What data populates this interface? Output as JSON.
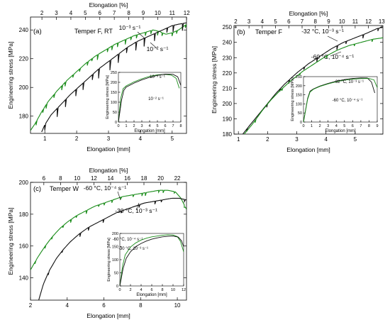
{
  "chart_data": [
    {
      "type": "line",
      "panel_label": "(a)",
      "annotation": "Temper F,  RT",
      "xlabel": "Elongation [mm]",
      "x2label": "Elongation [%]",
      "ylabel": "Engineering stress [MPa]",
      "xlim": [
        0.55,
        5.45
      ],
      "ylim": [
        168,
        249
      ],
      "x_ticks": [
        "1",
        "2",
        "3",
        "4",
        "5"
      ],
      "x_tick_values": [
        1,
        2,
        3,
        4,
        5
      ],
      "x2_ticks": [
        "2",
        "3",
        "4",
        "5",
        "6",
        "7",
        "8",
        "9",
        "10",
        "11",
        "12"
      ],
      "x2_tick_values": [
        2,
        3,
        4,
        5,
        6,
        7,
        8,
        9,
        10,
        11,
        12
      ],
      "x2_per_x": 2.2,
      "y_ticks": [
        "180",
        "200",
        "220",
        "240"
      ],
      "y_tick_values": [
        180,
        200,
        220,
        240
      ],
      "series": [
        {
          "label": "10⁻³ s⁻¹",
          "color": "#1a8c1a",
          "x": [
            0.55,
            0.7,
            0.9,
            1.1,
            1.4,
            1.7,
            2.0,
            2.3,
            2.6,
            2.9,
            3.2,
            3.5,
            3.8,
            4.1,
            4.4,
            4.6,
            4.8,
            5.0,
            5.2,
            5.45
          ],
          "y": [
            170,
            175,
            183,
            190,
            198,
            205,
            211,
            217,
            222,
            226,
            230,
            233,
            236,
            238,
            240,
            239,
            237,
            238,
            240,
            244
          ],
          "serrations": 24,
          "serration_drop": 2.5
        },
        {
          "label": "10⁻² s⁻¹",
          "color": "#111111",
          "x": [
            0.9,
            1.0,
            1.2,
            1.5,
            1.8,
            2.1,
            2.4,
            2.7,
            3.0,
            3.3,
            3.6,
            3.9,
            4.2,
            4.5,
            4.8,
            5.0,
            5.2,
            5.45
          ],
          "y": [
            169,
            174,
            181,
            188,
            195,
            201,
            207,
            213,
            218,
            223,
            228,
            232,
            235,
            238,
            241,
            243,
            244,
            245
          ],
          "serrations": 16,
          "serration_drop": 5
        }
      ],
      "inset": {
        "xlabel": "Elongation [mm]",
        "ylabel": "Engineering stress [MPa]",
        "xlim": [
          0,
          8
        ],
        "ylim": [
          0,
          250
        ],
        "x_ticks": [
          "0",
          "1",
          "2",
          "3",
          "4",
          "5",
          "6",
          "7",
          "8"
        ],
        "x_tick_values": [
          0,
          1,
          2,
          3,
          4,
          5,
          6,
          7,
          8
        ],
        "y_ticks": [
          "0",
          "50",
          "100",
          "150",
          "200",
          "250"
        ],
        "y_tick_values": [
          0,
          50,
          100,
          150,
          200,
          250
        ],
        "labels": [
          "10⁻³ s⁻¹",
          "10⁻² s⁻¹"
        ],
        "series": [
          {
            "color": "#1a8c1a",
            "x": [
              0,
              0.3,
              0.6,
              1.0,
              2.0,
              3.0,
              4.0,
              5.0,
              6.0,
              6.8,
              7.4,
              7.8
            ],
            "y": [
              0,
              120,
              168,
              182,
              202,
              218,
              230,
              238,
              240,
              236,
              220,
              170
            ]
          },
          {
            "color": "#111111",
            "x": [
              0,
              0.4,
              0.7,
              1.0,
              2.0,
              3.0,
              4.0,
              5.0,
              6.0,
              7.0,
              7.6,
              8.0
            ],
            "y": [
              0,
              110,
              160,
              176,
              196,
              212,
              225,
              235,
              241,
              240,
              228,
              185
            ]
          }
        ]
      }
    },
    {
      "type": "line",
      "panel_label": "(b)",
      "annotation": "Temper F",
      "xlabel": "Elongation [mm]",
      "x2label": "Elongation [%]",
      "ylabel": "Engineering stress [MPa]",
      "xlim": [
        0.85,
        5.95
      ],
      "ylim": [
        180,
        251
      ],
      "x_ticks": [
        "1",
        "2",
        "3",
        "4",
        "5"
      ],
      "x_tick_values": [
        1,
        2,
        3,
        4,
        5
      ],
      "x2_ticks": [
        "2",
        "3",
        "4",
        "5",
        "6",
        "7",
        "8",
        "9",
        "10",
        "11",
        "12",
        "13"
      ],
      "x2_tick_values": [
        2,
        3,
        4,
        5,
        6,
        7,
        8,
        9,
        10,
        11,
        12,
        13
      ],
      "x2_per_x": 2.2,
      "y_ticks": [
        "180",
        "190",
        "200",
        "210",
        "220",
        "230",
        "240",
        "250"
      ],
      "y_tick_values": [
        180,
        190,
        200,
        210,
        220,
        230,
        240,
        250
      ],
      "series": [
        {
          "label": "-32 °C, 10⁻³ s⁻¹",
          "color": "#111111",
          "x": [
            1.15,
            1.4,
            1.7,
            2.0,
            2.3,
            2.6,
            3.0,
            3.4,
            3.8,
            4.2,
            4.6,
            5.0,
            5.4,
            5.75,
            5.95
          ],
          "y": [
            180,
            186,
            193,
            200,
            207,
            213,
            220,
            226,
            231,
            236,
            240,
            243,
            246,
            249,
            250
          ],
          "serrations": 10,
          "serration_drop": 2
        },
        {
          "label": "-60 °C, 10⁻⁴ s⁻¹",
          "color": "#1a8c1a",
          "x": [
            1.2,
            1.5,
            1.8,
            2.1,
            2.4,
            2.8,
            3.2,
            3.6,
            4.0,
            4.4,
            4.8,
            5.2,
            5.6,
            5.95
          ],
          "y": [
            180,
            187,
            195,
            202,
            208,
            215,
            221,
            226,
            231,
            235,
            238,
            240,
            242,
            243
          ],
          "serrations": 6,
          "serration_drop": 1.5
        }
      ],
      "inset": {
        "xlabel": "Elongation [mm]",
        "ylabel": "Engineering stress [MPa]",
        "xlim": [
          0,
          9
        ],
        "ylim": [
          0,
          250
        ],
        "x_ticks": [
          "0",
          "1",
          "2",
          "3",
          "4",
          "5",
          "6",
          "7",
          "8",
          "9"
        ],
        "x_tick_values": [
          0,
          1,
          2,
          3,
          4,
          5,
          6,
          7,
          8,
          9
        ],
        "y_ticks": [
          "0",
          "50",
          "100",
          "150",
          "200",
          "250"
        ],
        "y_tick_values": [
          0,
          50,
          100,
          150,
          200,
          250
        ],
        "labels": [
          "-32 °C, 10⁻³ s⁻¹",
          "-60 °C, 10⁻⁴ s⁻¹"
        ],
        "series": [
          {
            "color": "#111111",
            "x": [
              0,
              0.5,
              0.8,
              1.2,
              2.0,
              3.0,
              4.0,
              5.0,
              6.0,
              7.0,
              7.8,
              8.3,
              8.7
            ],
            "y": [
              0,
              130,
              170,
              182,
              198,
              213,
              225,
              234,
              240,
              243,
              242,
              220,
              160
            ]
          },
          {
            "color": "#1a8c1a",
            "x": [
              0,
              0.5,
              0.8,
              1.2,
              2.0,
              3.0,
              4.0,
              5.0,
              6.0,
              7.0,
              8.0,
              8.6,
              9.0
            ],
            "y": [
              0,
              125,
              165,
              180,
              196,
              210,
              222,
              231,
              236,
              239,
              240,
              232,
              190
            ]
          }
        ]
      }
    },
    {
      "type": "line",
      "panel_label": "(c)",
      "annotation": "Temper W",
      "xlabel": "Elongation [mm]",
      "x2label": "Elongation [%]",
      "ylabel": "Engineering stress [MPa]",
      "xlim": [
        2.0,
        10.5
      ],
      "ylim": [
        126,
        200
      ],
      "x_ticks": [
        "2",
        "4",
        "6",
        "8",
        "10"
      ],
      "x_tick_values": [
        2,
        4,
        6,
        8,
        10
      ],
      "x2_ticks": [
        "6",
        "8",
        "10",
        "12",
        "14",
        "16",
        "18",
        "20",
        "22"
      ],
      "x2_tick_values": [
        6,
        8,
        10,
        12,
        14,
        16,
        18,
        20,
        22
      ],
      "x2_per_x": 2.2,
      "y_ticks": [
        "140",
        "160",
        "180",
        "200"
      ],
      "y_tick_values": [
        140,
        160,
        180,
        200
      ],
      "series": [
        {
          "label": "-60 °C, 10⁻⁴ s⁻¹",
          "color": "#1a8c1a",
          "x": [
            2.0,
            2.4,
            2.8,
            3.2,
            3.6,
            4.0,
            4.5,
            5.0,
            5.5,
            6.0,
            6.5,
            7.0,
            7.5,
            8.0,
            8.5,
            9.0,
            9.5,
            9.9,
            10.2,
            10.5
          ],
          "y": [
            145,
            153,
            160,
            166,
            171,
            175,
            179,
            182,
            185,
            187,
            189,
            191,
            192,
            193,
            194,
            195,
            195,
            194,
            190,
            183
          ],
          "serrations": 18,
          "serration_drop": 1.5
        },
        {
          "label": "-30 °C, 10⁻³ s⁻¹",
          "color": "#111111",
          "x": [
            2.45,
            2.7,
            3.0,
            3.4,
            3.8,
            4.2,
            4.7,
            5.2,
            5.7,
            6.2,
            6.7,
            7.2,
            7.7,
            8.2,
            8.7,
            9.2,
            9.7,
            10.1,
            10.5
          ],
          "y": [
            126,
            136,
            144,
            152,
            158,
            163,
            168,
            172,
            175,
            178,
            181,
            183,
            185,
            187,
            188,
            189,
            190,
            190,
            189
          ],
          "serrations": 10,
          "serration_drop": 1.5
        }
      ],
      "inset": {
        "xlabel": "Elongation [mm]",
        "ylabel": "Engineering stress [MPa]",
        "xlim": [
          0,
          12
        ],
        "ylim": [
          0,
          200
        ],
        "x_ticks": [
          "0",
          "2",
          "4",
          "6",
          "8",
          "10",
          "12"
        ],
        "x_tick_values": [
          0,
          2,
          4,
          6,
          8,
          10,
          12
        ],
        "y_ticks": [
          "0",
          "50",
          "100",
          "150",
          "200"
        ],
        "y_tick_values": [
          0,
          50,
          100,
          150,
          200
        ],
        "labels": [
          "-60 °C, 10⁻⁴ s⁻¹",
          "-30 °C, 10⁻³ s⁻¹"
        ],
        "series": [
          {
            "color": "#1a8c1a",
            "x": [
              0,
              0.5,
              1.0,
              2.0,
              3.0,
              4.0,
              5.0,
              6.0,
              7.0,
              8.0,
              9.0,
              10.0,
              10.8,
              11.4,
              12.0
            ],
            "y": [
              0,
              75,
              118,
              148,
              164,
              175,
              182,
              187,
              190,
              193,
              195,
              194,
              188,
              170,
              130
            ]
          },
          {
            "color": "#111111",
            "x": [
              0,
              0.6,
              1.2,
              2.0,
              3.0,
              4.0,
              5.0,
              6.0,
              7.0,
              8.0,
              9.0,
              10.0,
              11.0,
              11.6,
              12.0
            ],
            "y": [
              0,
              65,
              105,
              130,
              150,
              162,
              171,
              178,
              183,
              187,
              189,
              190,
              186,
              172,
              150
            ]
          }
        ]
      }
    }
  ]
}
